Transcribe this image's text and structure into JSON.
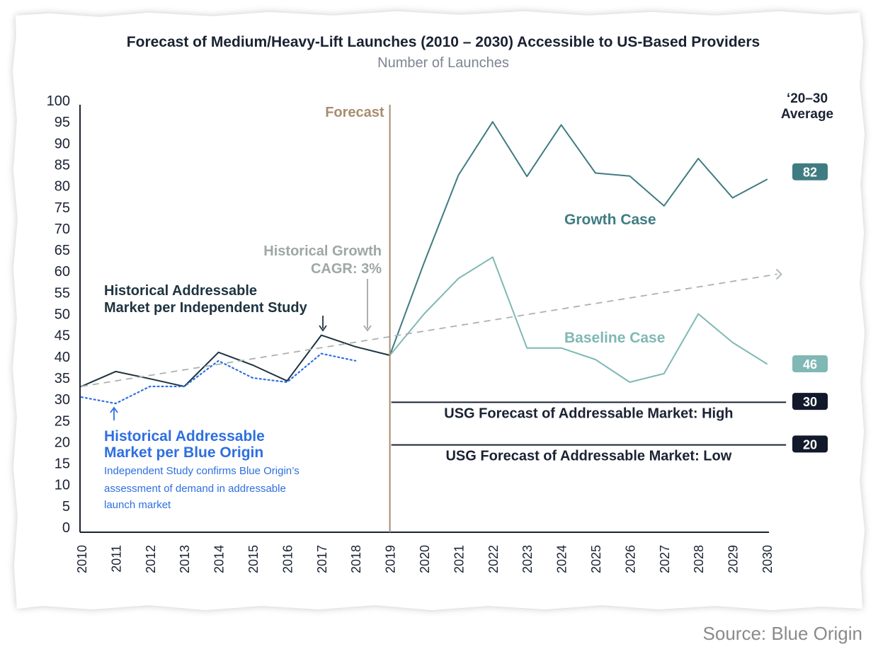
{
  "chart_data": {
    "type": "line",
    "title": "Forecast of Medium/Heavy-Lift Launches (2010 – 2030) Accessible to US-Based Providers",
    "subtitle": "Number of Launches",
    "x": [
      2010,
      2011,
      2012,
      2013,
      2014,
      2015,
      2016,
      2017,
      2018,
      2019,
      2020,
      2021,
      2022,
      2023,
      2024,
      2025,
      2026,
      2027,
      2028,
      2029,
      2030
    ],
    "x_tick_labels": [
      "2010",
      "2011",
      "2012",
      "2013",
      "2014",
      "2015",
      "2016",
      "2017",
      "2018",
      "2019",
      "2020",
      "2021",
      "2022",
      "2023",
      "2024",
      "2025",
      "2026",
      "2027",
      "2028",
      "2029",
      "2030"
    ],
    "y_ticks": [
      0,
      5,
      10,
      15,
      20,
      25,
      30,
      35,
      40,
      45,
      50,
      55,
      60,
      65,
      70,
      75,
      80,
      85,
      90,
      95,
      100
    ],
    "ylim": [
      0,
      100
    ],
    "grid": false,
    "series": [
      {
        "key": "independent",
        "name": "Historical Addressable Market per Independent Study",
        "color": "#1e3340",
        "style": "solid",
        "points": [
          [
            2010,
            33
          ],
          [
            2011,
            36.5
          ],
          [
            2012,
            34.8
          ],
          [
            2013,
            33
          ],
          [
            2014,
            41
          ],
          [
            2015,
            38
          ],
          [
            2016,
            34.3
          ],
          [
            2017,
            45
          ],
          [
            2018,
            42.3
          ],
          [
            2019,
            40.3
          ]
        ]
      },
      {
        "key": "blue_origin",
        "name": "Historical Addressable Market per Blue Origin",
        "color": "#2e6fe0",
        "style": "dotted",
        "points": [
          [
            2010,
            30.5
          ],
          [
            2011,
            29
          ],
          [
            2012,
            33
          ],
          [
            2013,
            33
          ],
          [
            2014,
            39
          ],
          [
            2015,
            35
          ],
          [
            2016,
            34
          ],
          [
            2017,
            40.7
          ],
          [
            2018,
            39
          ]
        ]
      },
      {
        "key": "growth",
        "name": "Growth Case",
        "color": "#3f7c82",
        "style": "solid",
        "points": [
          [
            2019,
            40.3
          ],
          [
            2020,
            62
          ],
          [
            2021,
            82.5
          ],
          [
            2022,
            95
          ],
          [
            2023,
            82.2
          ],
          [
            2024,
            94.3
          ],
          [
            2025,
            83
          ],
          [
            2026,
            82.3
          ],
          [
            2027,
            75.3
          ],
          [
            2028,
            86.4
          ],
          [
            2029,
            77.2
          ],
          [
            2030,
            81.5
          ]
        ]
      },
      {
        "key": "baseline",
        "name": "Baseline Case",
        "color": "#7fb8b4",
        "style": "solid",
        "points": [
          [
            2019,
            40.3
          ],
          [
            2020,
            50
          ],
          [
            2021,
            58.3
          ],
          [
            2022,
            63.3
          ],
          [
            2023,
            42
          ],
          [
            2024,
            42
          ],
          [
            2025,
            39.3
          ],
          [
            2026,
            34
          ],
          [
            2027,
            36
          ],
          [
            2028,
            50
          ],
          [
            2029,
            43.3
          ],
          [
            2030,
            38.3
          ]
        ]
      },
      {
        "key": "cagr",
        "name": "Historical Growth CAGR: 3%",
        "color": "#a9b3b1",
        "style": "dashed",
        "points": [
          [
            2010,
            33
          ],
          [
            2030.3,
            59.3
          ]
        ]
      }
    ],
    "reference_lines": [
      {
        "key": "usg_high",
        "label": "USG Forecast of Addressable Market: High",
        "value": 29.3,
        "x_start": 2019,
        "x_end": 2030.5,
        "color": "#1a2233"
      },
      {
        "key": "usg_low",
        "label": "USG Forecast of Addressable Market: Low",
        "value": 19.3,
        "x_start": 2019,
        "x_end": 2030.5,
        "color": "#1a2233"
      }
    ],
    "forecast_marker": {
      "x": 2019,
      "label": "Forecast",
      "color": "#a88d70"
    },
    "average_header": [
      "‘20–30",
      "Average"
    ],
    "averages": [
      {
        "key": "growth",
        "value": "82",
        "y": 83.3,
        "color": "#3f7c82"
      },
      {
        "key": "baseline",
        "value": "46",
        "y": 38.3,
        "color": "#7fb8b4"
      },
      {
        "key": "high",
        "value": "30",
        "y": 29.5,
        "color": "#12192b"
      },
      {
        "key": "low",
        "value": "20",
        "y": 19.5,
        "color": "#12192b"
      }
    ],
    "annotations": {
      "independent": [
        "Historical Addressable",
        "Market per Independent Study"
      ],
      "cagr": [
        "Historical Growth",
        "CAGR: 3%"
      ],
      "blue_origin": [
        "Historical Addressable",
        "Market per Blue Origin"
      ],
      "blue_origin_note": [
        "Independent Study confirms Blue Origin’s",
        "assessment of demand in addressable",
        "launch market"
      ],
      "growth": "Growth Case",
      "baseline": "Baseline Case"
    }
  },
  "source": "Source: Blue Origin"
}
